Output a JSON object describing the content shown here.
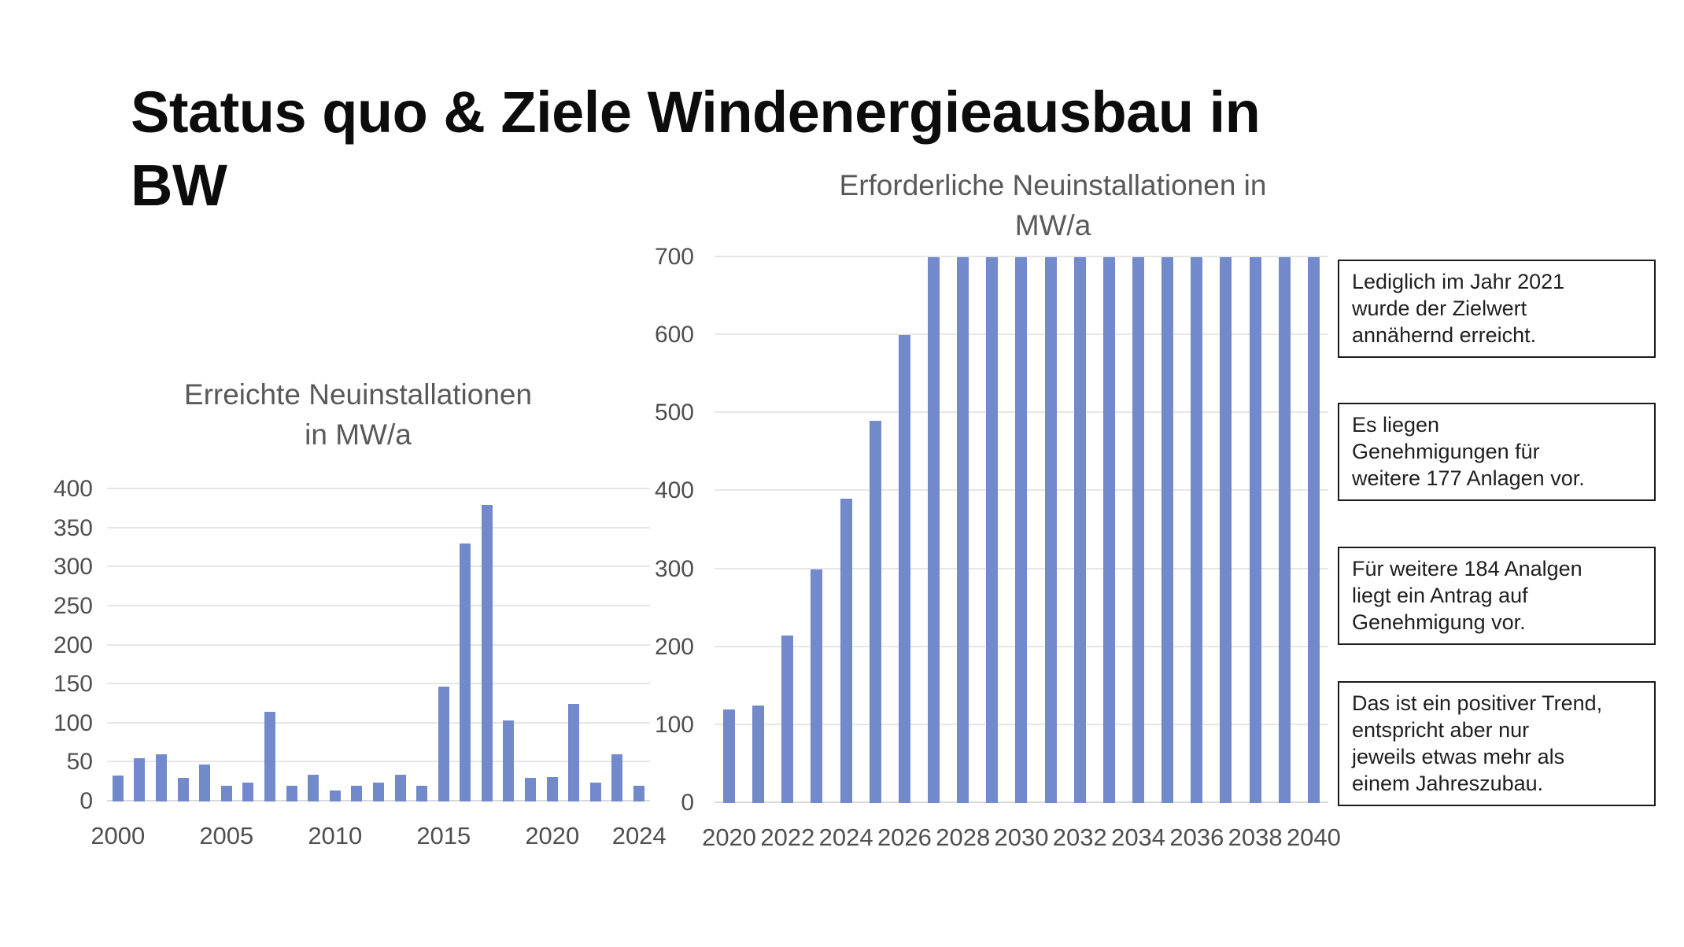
{
  "slide": {
    "title": "Status quo & Ziele Windenergieausbau in\nBW"
  },
  "colors": {
    "bar": "#7289cb",
    "gridline": "#e6e6e6",
    "baseline": "#d9d9d9",
    "chart_title_text": "#595959",
    "axis_text": "#4f4f4f",
    "title_text": "#0c0c0c",
    "note_border": "#1a1a1a",
    "background": "#ffffff"
  },
  "chart_data": [
    {
      "type": "bar",
      "title": "Erreichte Neuinstallationen\nin MW/a",
      "categories": [
        2000,
        2001,
        2002,
        2003,
        2004,
        2005,
        2006,
        2007,
        2008,
        2009,
        2010,
        2011,
        2012,
        2013,
        2014,
        2015,
        2016,
        2017,
        2018,
        2019,
        2020,
        2021,
        2022,
        2023,
        2024
      ],
      "values": [
        33,
        55,
        60,
        30,
        47,
        20,
        24,
        115,
        20,
        34,
        14,
        20,
        24,
        34,
        20,
        147,
        330,
        380,
        104,
        30,
        31,
        125,
        24,
        60,
        20
      ],
      "xlabel": "",
      "ylabel": "",
      "ylim": [
        0,
        400
      ],
      "yticks": [
        0,
        50,
        100,
        150,
        200,
        250,
        300,
        350,
        400
      ],
      "x_tick_labels": [
        "2000",
        "2005",
        "2010",
        "2015",
        "2020",
        "2024"
      ],
      "grid": true,
      "legend": "none",
      "bar_color": "#7289cb"
    },
    {
      "type": "bar",
      "title": "Erforderliche Neuinstallationen in\nMW/a",
      "categories": [
        2020,
        2021,
        2022,
        2023,
        2024,
        2025,
        2026,
        2027,
        2028,
        2029,
        2030,
        2031,
        2032,
        2033,
        2034,
        2035,
        2036,
        2037,
        2038,
        2039,
        2040
      ],
      "values": [
        120,
        125,
        215,
        300,
        390,
        490,
        600,
        700,
        700,
        700,
        700,
        700,
        700,
        700,
        700,
        700,
        700,
        700,
        700,
        700,
        700
      ],
      "xlabel": "",
      "ylabel": "",
      "ylim": [
        0,
        700
      ],
      "yticks": [
        0,
        100,
        200,
        300,
        400,
        500,
        600,
        700
      ],
      "x_tick_labels": [
        "2020",
        "2022",
        "2024",
        "2026",
        "2028",
        "2030",
        "2032",
        "2034",
        "2036",
        "2038",
        "2040"
      ],
      "grid": true,
      "legend": "none",
      "bar_color": "#7289cb"
    }
  ],
  "annotations": {
    "boxes": [
      {
        "text": "Lediglich im Jahr 2021\nwurde der Zielwert\nannähernd erreicht."
      },
      {
        "text": "Es liegen\nGenehmigungen für\nweitere 177 Anlagen vor."
      },
      {
        "text": "Für weitere 184 Analgen\nliegt ein Antrag auf\nGenehmigung vor."
      },
      {
        "text": "Das ist ein positiver Trend,\nentspricht aber nur\njeweils etwas mehr als\neinem Jahreszubau."
      }
    ]
  }
}
